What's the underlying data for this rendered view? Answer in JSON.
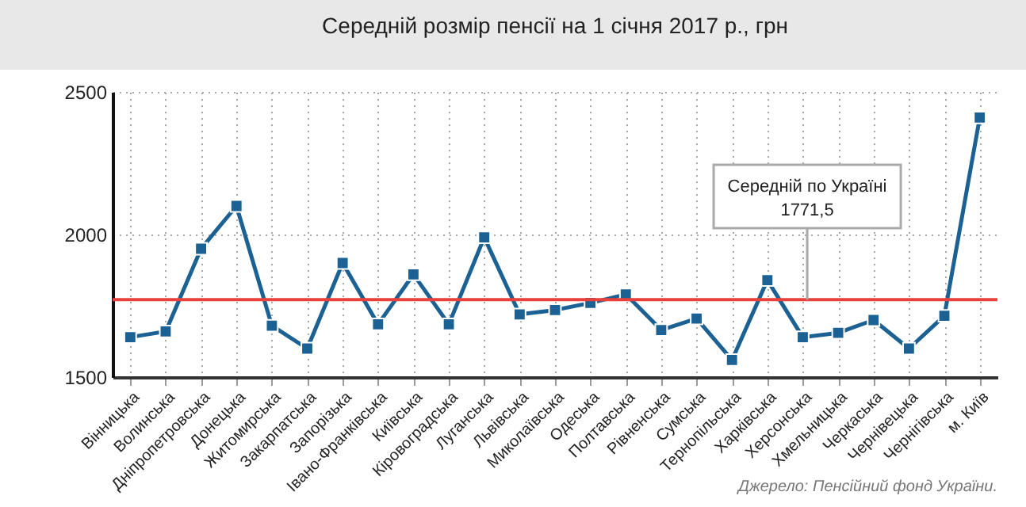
{
  "chart_data": {
    "type": "line",
    "title": "Середній розмір пенсії на 1 січня 2017 р., грн",
    "categories": [
      "Вінницька",
      "Волинська",
      "Дніпропетровська",
      "Донецька",
      "Житомирська",
      "Закарпатська",
      "Запорізька",
      "Івано-Франківська",
      "Київська",
      "Кіровоградська",
      "Луганська",
      "Львівська",
      "Миколаївська",
      "Одеська",
      "Полтавська",
      "Рівненська",
      "Сумська",
      "Тернопільська",
      "Харківська",
      "Херсонська",
      "Хмельницька",
      "Черкаська",
      "Чернівецька",
      "Чернігівська",
      "м. Київ"
    ],
    "series": [
      {
        "color": "#1b6193",
        "values": [
          1640,
          1660,
          1950,
          2100,
          1680,
          1600,
          1900,
          1685,
          1860,
          1685,
          1990,
          1720,
          1735,
          1760,
          1790,
          1665,
          1705,
          1560,
          1840,
          1640,
          1655,
          1700,
          1600,
          1715,
          2410
        ]
      }
    ],
    "ylim": [
      1500,
      2500
    ],
    "yticks": [
      1500,
      2000,
      2500
    ],
    "grid": true,
    "marker": "square",
    "ref_lines": [
      {
        "axis": "y",
        "value": 1771.5,
        "label": "Середній по Україні\n1771,5",
        "color": "#e8413c"
      }
    ],
    "annotations": [
      "Джерело: Пенсійний фонд України."
    ]
  }
}
